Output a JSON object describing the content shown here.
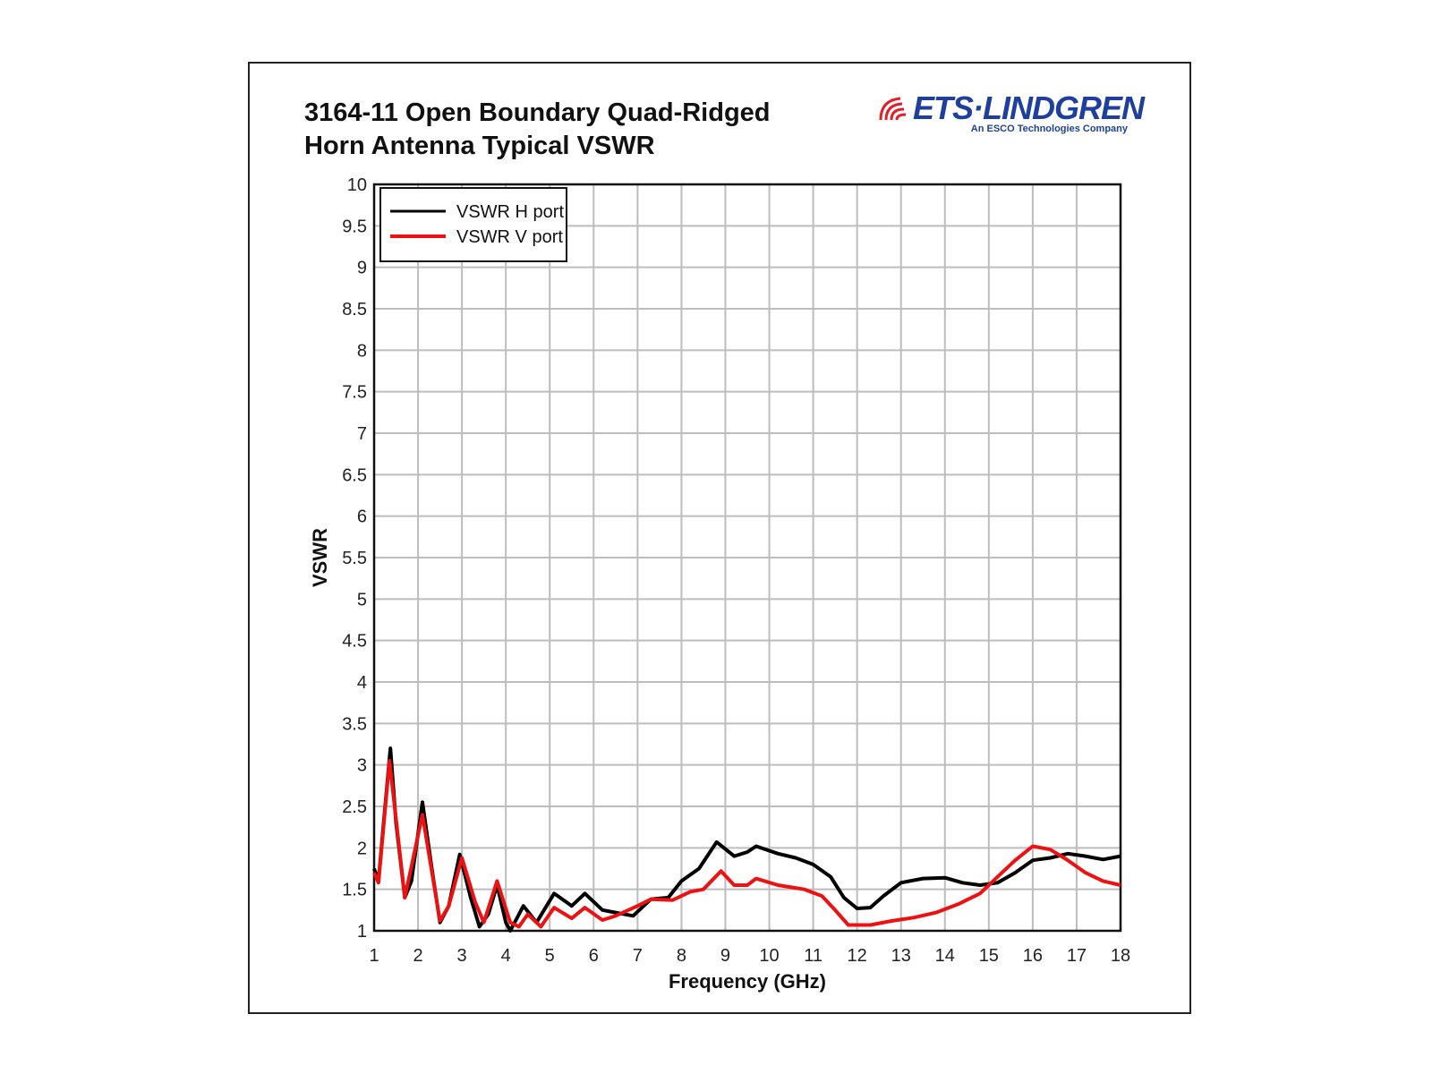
{
  "logo": {
    "brand": "ETS·LINDGREN",
    "tagline": "An ESCO Technologies Company"
  },
  "chart_data": {
    "type": "line",
    "title": "3164-11 Open Boundary Quad-Ridged Horn Antenna Typical VSWR",
    "title_lines": [
      "3164-11 Open Boundary Quad-Ridged",
      "Horn Antenna Typical VSWR"
    ],
    "xlabel": "Frequency (GHz)",
    "ylabel": "VSWR",
    "xlim": [
      1,
      18
    ],
    "ylim": [
      1,
      10
    ],
    "xticks": [
      "1",
      "2",
      "3",
      "4",
      "5",
      "6",
      "7",
      "8",
      "9",
      "10",
      "11",
      "12",
      "13",
      "14",
      "15",
      "16",
      "17",
      "18"
    ],
    "yticks": [
      "1",
      "1.5",
      "2",
      "2.5",
      "3",
      "3.5",
      "4",
      "4.5",
      "5",
      "5.5",
      "6",
      "6.5",
      "7",
      "7.5",
      "8",
      "8.5",
      "9",
      "9.5",
      "10"
    ],
    "grid": true,
    "legend_position": "top-left",
    "series": [
      {
        "name": "VSWR H port",
        "color": "#000000",
        "points": [
          [
            1.0,
            1.75
          ],
          [
            1.1,
            1.6
          ],
          [
            1.2,
            2.2
          ],
          [
            1.37,
            3.2
          ],
          [
            1.5,
            2.3
          ],
          [
            1.7,
            1.4
          ],
          [
            1.85,
            1.6
          ],
          [
            2.1,
            2.55
          ],
          [
            2.3,
            1.8
          ],
          [
            2.5,
            1.1
          ],
          [
            2.7,
            1.3
          ],
          [
            2.95,
            1.92
          ],
          [
            3.2,
            1.4
          ],
          [
            3.4,
            1.05
          ],
          [
            3.6,
            1.2
          ],
          [
            3.8,
            1.55
          ],
          [
            4.0,
            1.1
          ],
          [
            4.1,
            1.0
          ],
          [
            4.4,
            1.3
          ],
          [
            4.7,
            1.1
          ],
          [
            5.1,
            1.45
          ],
          [
            5.5,
            1.3
          ],
          [
            5.8,
            1.45
          ],
          [
            6.2,
            1.25
          ],
          [
            6.5,
            1.22
          ],
          [
            6.9,
            1.18
          ],
          [
            7.3,
            1.38
          ],
          [
            7.7,
            1.4
          ],
          [
            8.0,
            1.6
          ],
          [
            8.4,
            1.75
          ],
          [
            8.8,
            2.07
          ],
          [
            9.2,
            1.9
          ],
          [
            9.5,
            1.95
          ],
          [
            9.7,
            2.02
          ],
          [
            10.2,
            1.93
          ],
          [
            10.6,
            1.88
          ],
          [
            11.0,
            1.8
          ],
          [
            11.4,
            1.65
          ],
          [
            11.7,
            1.4
          ],
          [
            12.0,
            1.27
          ],
          [
            12.3,
            1.28
          ],
          [
            12.6,
            1.42
          ],
          [
            13.0,
            1.58
          ],
          [
            13.5,
            1.63
          ],
          [
            14.0,
            1.64
          ],
          [
            14.4,
            1.58
          ],
          [
            14.8,
            1.55
          ],
          [
            15.2,
            1.58
          ],
          [
            15.6,
            1.7
          ],
          [
            16.0,
            1.85
          ],
          [
            16.4,
            1.88
          ],
          [
            16.8,
            1.93
          ],
          [
            17.2,
            1.9
          ],
          [
            17.6,
            1.86
          ],
          [
            18.0,
            1.9
          ]
        ]
      },
      {
        "name": "VSWR V port",
        "color": "#ee1111",
        "points": [
          [
            1.0,
            1.7
          ],
          [
            1.1,
            1.58
          ],
          [
            1.35,
            3.05
          ],
          [
            1.7,
            1.4
          ],
          [
            2.1,
            2.4
          ],
          [
            2.5,
            1.12
          ],
          [
            2.7,
            1.3
          ],
          [
            3.0,
            1.88
          ],
          [
            3.3,
            1.35
          ],
          [
            3.5,
            1.1
          ],
          [
            3.8,
            1.6
          ],
          [
            4.1,
            1.1
          ],
          [
            4.3,
            1.05
          ],
          [
            4.5,
            1.2
          ],
          [
            4.8,
            1.05
          ],
          [
            5.1,
            1.28
          ],
          [
            5.5,
            1.15
          ],
          [
            5.8,
            1.28
          ],
          [
            6.2,
            1.13
          ],
          [
            6.5,
            1.18
          ],
          [
            7.0,
            1.3
          ],
          [
            7.3,
            1.38
          ],
          [
            7.8,
            1.37
          ],
          [
            8.2,
            1.47
          ],
          [
            8.5,
            1.5
          ],
          [
            8.9,
            1.72
          ],
          [
            9.2,
            1.55
          ],
          [
            9.5,
            1.55
          ],
          [
            9.7,
            1.63
          ],
          [
            10.2,
            1.55
          ],
          [
            10.8,
            1.5
          ],
          [
            11.2,
            1.42
          ],
          [
            11.5,
            1.25
          ],
          [
            11.8,
            1.07
          ],
          [
            12.3,
            1.07
          ],
          [
            12.8,
            1.12
          ],
          [
            13.3,
            1.16
          ],
          [
            13.8,
            1.22
          ],
          [
            14.3,
            1.32
          ],
          [
            14.8,
            1.45
          ],
          [
            15.3,
            1.7
          ],
          [
            15.6,
            1.85
          ],
          [
            16.0,
            2.02
          ],
          [
            16.4,
            1.98
          ],
          [
            16.8,
            1.85
          ],
          [
            17.2,
            1.7
          ],
          [
            17.6,
            1.6
          ],
          [
            18.0,
            1.55
          ]
        ]
      }
    ]
  }
}
